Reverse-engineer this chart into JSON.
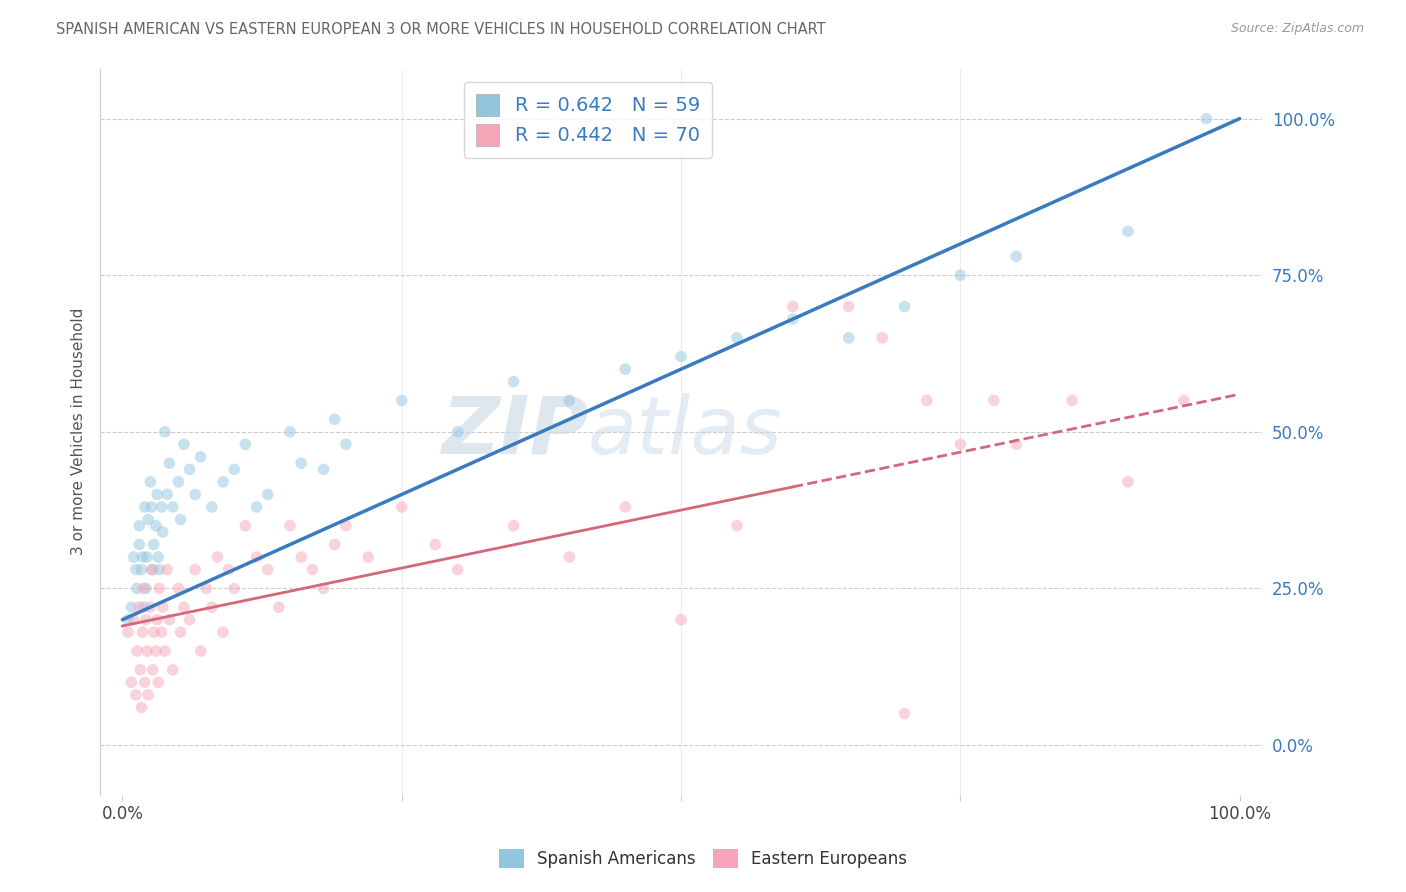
{
  "title": "SPANISH AMERICAN VS EASTERN EUROPEAN 3 OR MORE VEHICLES IN HOUSEHOLD CORRELATION CHART",
  "source": "Source: ZipAtlas.com",
  "ylabel": "3 or more Vehicles in Household",
  "xlim": [
    0,
    100
  ],
  "ylim": [
    -8,
    108
  ],
  "yticks": [
    0,
    25,
    50,
    75,
    100
  ],
  "ytick_labels": [
    "0.0%",
    "25.0%",
    "50.0%",
    "75.0%",
    "100.0%"
  ],
  "xticks": [
    0,
    25,
    50,
    75,
    100
  ],
  "xtick_labels": [
    "0.0%",
    "",
    "",
    "",
    "100.0%"
  ],
  "blue_R": 0.642,
  "blue_N": 59,
  "pink_R": 0.442,
  "pink_N": 70,
  "blue_color": "#92c5de",
  "pink_color": "#f4a6b8",
  "blue_line_color": "#3a7bbf",
  "pink_line_color": "#d4687a",
  "legend_text_color": "#3a7bbf",
  "title_color": "#666666",
  "background_color": "#ffffff",
  "grid_color": "#cccccc",
  "scatter_size": 70,
  "scatter_alpha": 0.5,
  "blue_line_intercept": 20.0,
  "blue_line_slope": 0.8,
  "pink_line_intercept": 19.0,
  "pink_line_slope": 0.37,
  "blue_scatter_x": [
    0.5,
    0.8,
    1.0,
    1.2,
    1.3,
    1.5,
    1.5,
    1.7,
    1.8,
    1.9,
    2.0,
    2.1,
    2.2,
    2.3,
    2.5,
    2.6,
    2.7,
    2.8,
    3.0,
    3.1,
    3.2,
    3.3,
    3.5,
    3.6,
    3.8,
    4.0,
    4.2,
    4.5,
    5.0,
    5.2,
    5.5,
    6.0,
    6.5,
    7.0,
    8.0,
    9.0,
    10.0,
    11.0,
    12.0,
    13.0,
    15.0,
    16.0,
    18.0,
    19.0,
    20.0,
    25.0,
    30.0,
    35.0,
    40.0,
    45.0,
    50.0,
    55.0,
    60.0,
    65.0,
    70.0,
    75.0,
    80.0,
    90.0,
    97.0
  ],
  "blue_scatter_y": [
    20.0,
    22.0,
    30.0,
    28.0,
    25.0,
    32.0,
    35.0,
    28.0,
    30.0,
    22.0,
    38.0,
    25.0,
    30.0,
    36.0,
    42.0,
    38.0,
    28.0,
    32.0,
    35.0,
    40.0,
    30.0,
    28.0,
    38.0,
    34.0,
    50.0,
    40.0,
    45.0,
    38.0,
    42.0,
    36.0,
    48.0,
    44.0,
    40.0,
    46.0,
    38.0,
    42.0,
    44.0,
    48.0,
    38.0,
    40.0,
    50.0,
    45.0,
    44.0,
    52.0,
    48.0,
    55.0,
    50.0,
    58.0,
    55.0,
    60.0,
    62.0,
    65.0,
    68.0,
    65.0,
    70.0,
    75.0,
    78.0,
    82.0,
    100.0
  ],
  "pink_scatter_x": [
    0.5,
    0.8,
    1.0,
    1.2,
    1.3,
    1.5,
    1.6,
    1.7,
    1.8,
    1.9,
    2.0,
    2.1,
    2.2,
    2.3,
    2.5,
    2.6,
    2.7,
    2.8,
    3.0,
    3.1,
    3.2,
    3.3,
    3.5,
    3.6,
    3.8,
    4.0,
    4.2,
    4.5,
    5.0,
    5.2,
    5.5,
    6.0,
    6.5,
    7.0,
    7.5,
    8.0,
    8.5,
    9.0,
    9.5,
    10.0,
    11.0,
    12.0,
    13.0,
    14.0,
    15.0,
    16.0,
    17.0,
    18.0,
    19.0,
    20.0,
    22.0,
    25.0,
    28.0,
    30.0,
    35.0,
    40.0,
    45.0,
    50.0,
    55.0,
    60.0,
    65.0,
    68.0,
    70.0,
    72.0,
    75.0,
    78.0,
    80.0,
    85.0,
    90.0,
    95.0
  ],
  "pink_scatter_y": [
    18.0,
    10.0,
    20.0,
    8.0,
    15.0,
    22.0,
    12.0,
    6.0,
    18.0,
    25.0,
    10.0,
    20.0,
    15.0,
    8.0,
    22.0,
    28.0,
    12.0,
    18.0,
    15.0,
    20.0,
    10.0,
    25.0,
    18.0,
    22.0,
    15.0,
    28.0,
    20.0,
    12.0,
    25.0,
    18.0,
    22.0,
    20.0,
    28.0,
    15.0,
    25.0,
    22.0,
    30.0,
    18.0,
    28.0,
    25.0,
    35.0,
    30.0,
    28.0,
    22.0,
    35.0,
    30.0,
    28.0,
    25.0,
    32.0,
    35.0,
    30.0,
    38.0,
    32.0,
    28.0,
    35.0,
    30.0,
    38.0,
    20.0,
    35.0,
    70.0,
    70.0,
    65.0,
    5.0,
    55.0,
    48.0,
    55.0,
    48.0,
    55.0,
    42.0,
    55.0
  ]
}
